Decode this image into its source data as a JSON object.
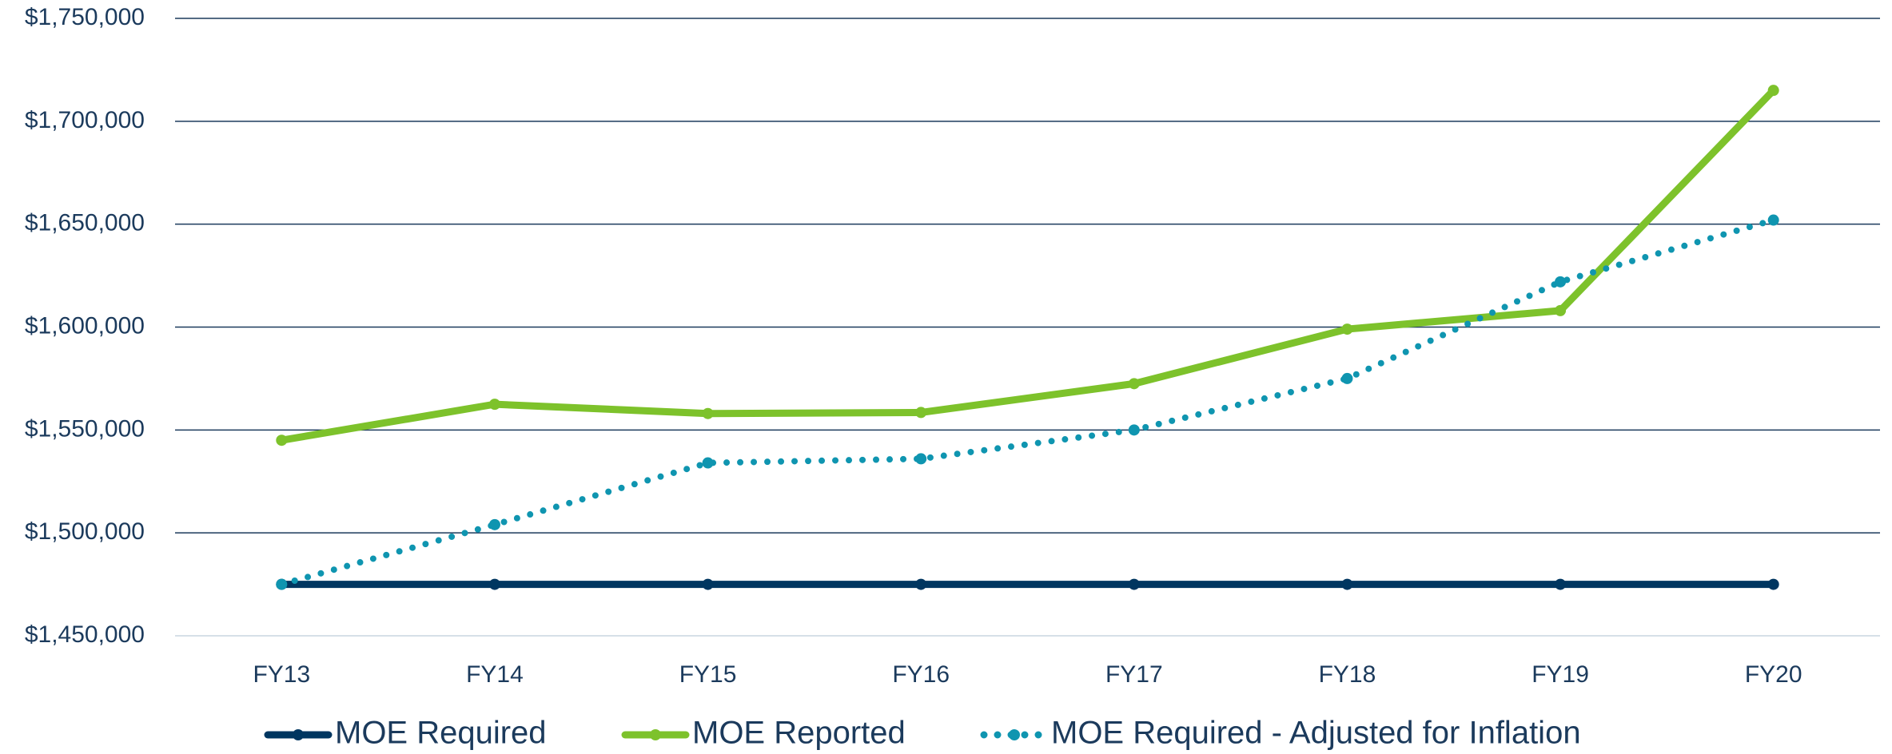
{
  "chart_data": {
    "type": "line",
    "categories": [
      "FY13",
      "FY14",
      "FY15",
      "FY16",
      "FY17",
      "FY18",
      "FY19",
      "FY20"
    ],
    "series": [
      {
        "name": "MOE Required",
        "color": "#003660",
        "style": "solid",
        "values": [
          1475000,
          1475000,
          1475000,
          1475000,
          1475000,
          1475000,
          1475000,
          1475000
        ]
      },
      {
        "name": "MOE Reported",
        "color": "#7dc22b",
        "style": "solid",
        "values": [
          1545000,
          1562500,
          1558000,
          1558500,
          1572500,
          1599000,
          1608000,
          1715000
        ]
      },
      {
        "name": "MOE Required - Adjusted for Inflation",
        "color": "#0f95b0",
        "style": "dotted",
        "values": [
          1475000,
          1504000,
          1534000,
          1536000,
          1550000,
          1575000,
          1622000,
          1652000
        ]
      }
    ],
    "ylim": [
      1450000,
      1750000
    ],
    "yticks": [
      {
        "value": 1450000,
        "label": "$1,450,000"
      },
      {
        "value": 1500000,
        "label": "$1,500,000"
      },
      {
        "value": 1550000,
        "label": "$1,550,000"
      },
      {
        "value": 1600000,
        "label": "$1,600,000"
      },
      {
        "value": 1650000,
        "label": "$1,650,000"
      },
      {
        "value": 1700000,
        "label": "$1,700,000"
      },
      {
        "value": 1750000,
        "label": "$1,750,000"
      }
    ],
    "grid": true,
    "legend": "bottom"
  }
}
